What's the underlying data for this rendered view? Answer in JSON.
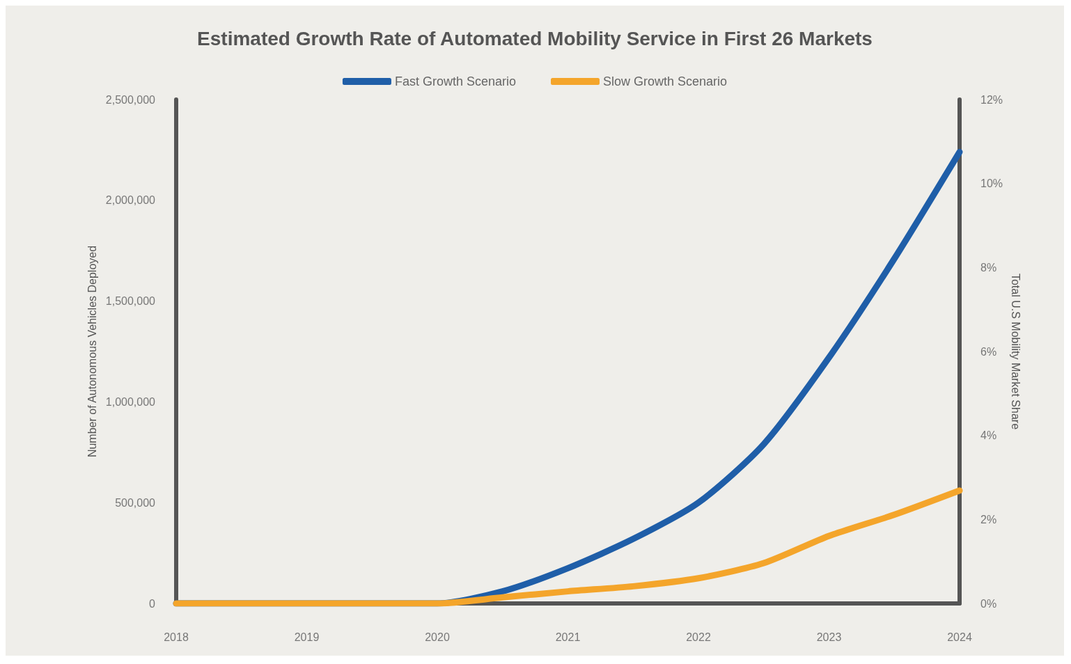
{
  "chart_data": {
    "type": "line",
    "title": "Estimated Growth Rate of Automated Mobility Service in First 26 Markets",
    "ylabel": "Number of Autonomous Vehicles Deployed",
    "y2label": "Total U.S Mobility Market Share",
    "series": [
      {
        "name": "Fast Growth Scenario",
        "color": "#1f5ea8",
        "x": [
          2018,
          2019,
          2020,
          2020.5,
          2021,
          2021.5,
          2022,
          2022.5,
          2023,
          2023.5,
          2024
        ],
        "values": [
          0,
          0,
          0,
          60000,
          175000,
          320000,
          500000,
          790000,
          1220000,
          1710000,
          2240000
        ]
      },
      {
        "name": "Slow Growth Scenario",
        "color": "#f4a52b",
        "x": [
          2018,
          2019,
          2020,
          2020.5,
          2021,
          2021.5,
          2022,
          2022.5,
          2023,
          2023.5,
          2024
        ],
        "values": [
          0,
          0,
          0,
          30000,
          60000,
          85000,
          125000,
          200000,
          335000,
          440000,
          560000
        ]
      }
    ],
    "xlim": [
      2018,
      2024
    ],
    "xticks": [
      2018,
      2019,
      2020,
      2021,
      2022,
      2023,
      2024
    ],
    "ylim": [
      0,
      2500000
    ],
    "yticks": [
      0,
      {
        "value": 500000,
        "label": "500,000"
      },
      {
        "value": 1000000,
        "label": "1,000,000"
      },
      {
        "value": 1500000,
        "label": "1,500,000"
      },
      {
        "value": 2000000,
        "label": "2,000,000"
      },
      {
        "value": 2500000,
        "label": "2,500,000"
      }
    ],
    "y2lim": [
      0,
      12
    ],
    "y2ticks": [
      {
        "value": 0,
        "label": "0%"
      },
      {
        "value": 2,
        "label": "2%"
      },
      {
        "value": 4,
        "label": "4%"
      },
      {
        "value": 6,
        "label": "6%"
      },
      {
        "value": 8,
        "label": "8%"
      },
      {
        "value": 10,
        "label": "10%"
      },
      {
        "value": 12,
        "label": "12%"
      }
    ],
    "grid": false,
    "legend": "top",
    "marker": "none",
    "line_style": "solid"
  }
}
